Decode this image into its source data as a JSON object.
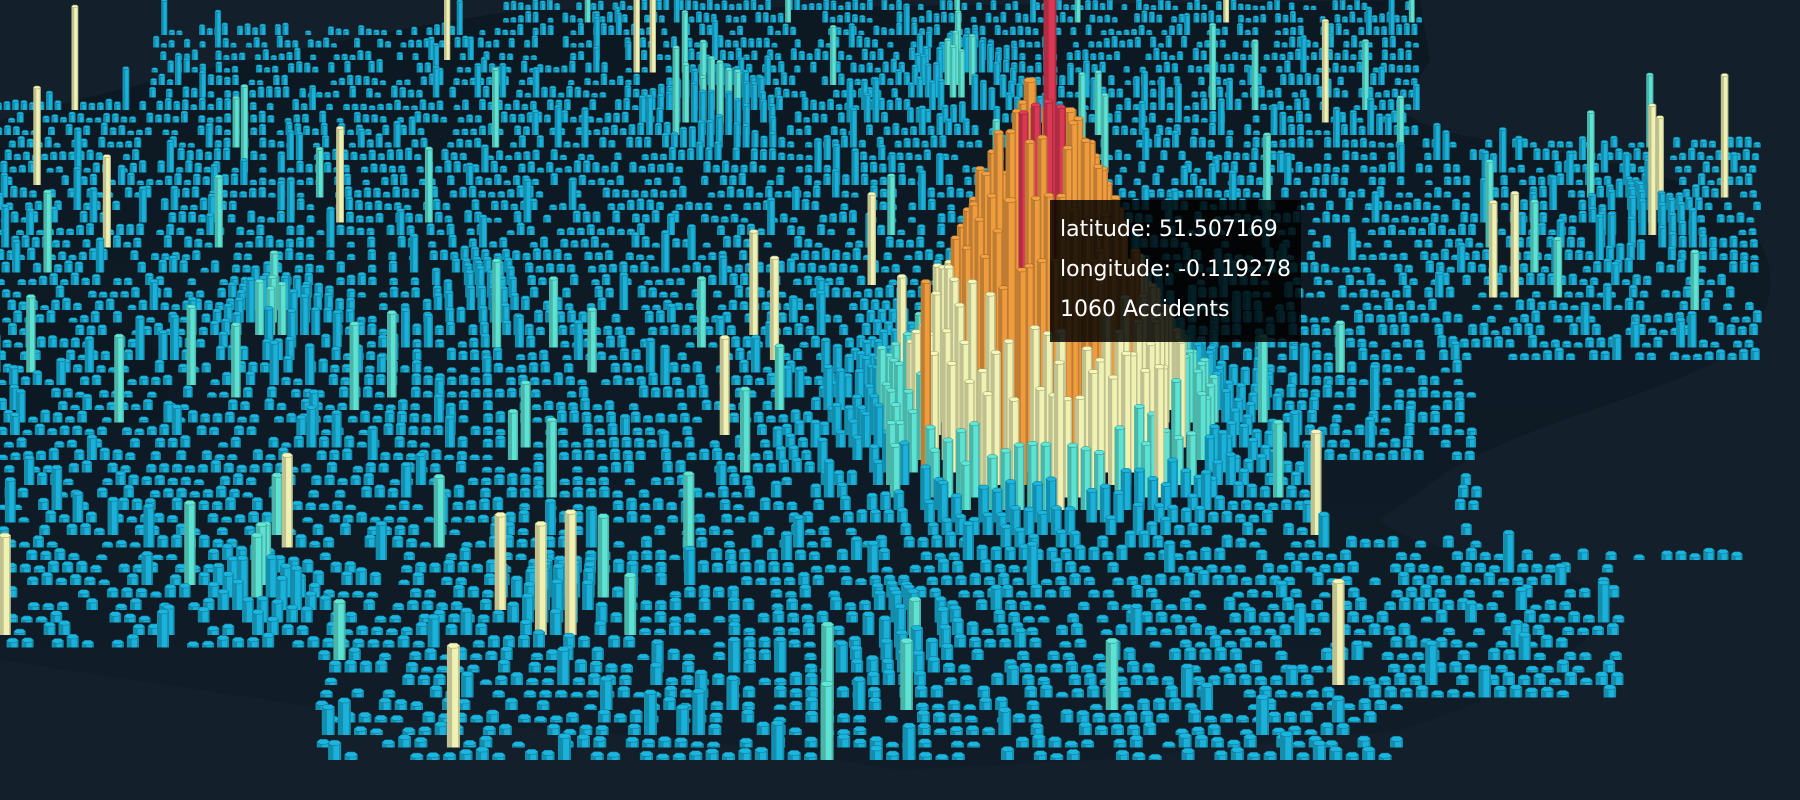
{
  "map": {
    "tooltip": {
      "latitude_label": "latitude:",
      "latitude_value": "51.507169",
      "longitude_label": "longitude:",
      "longitude_value": "-0.119278",
      "accidents_count": "1060",
      "accidents_label": "Accidents"
    },
    "colors": {
      "background": "#13202b",
      "land": "#0e1a24",
      "hex_low": "#1bb6df",
      "hex_mid": "#5fe8d8",
      "hex_high": "#f5f7b8",
      "hex_higher": "#f4a040",
      "hex_peak": "#e03a55"
    },
    "color_scale_levels": [
      "low",
      "mid",
      "high",
      "higher",
      "peak"
    ]
  }
}
